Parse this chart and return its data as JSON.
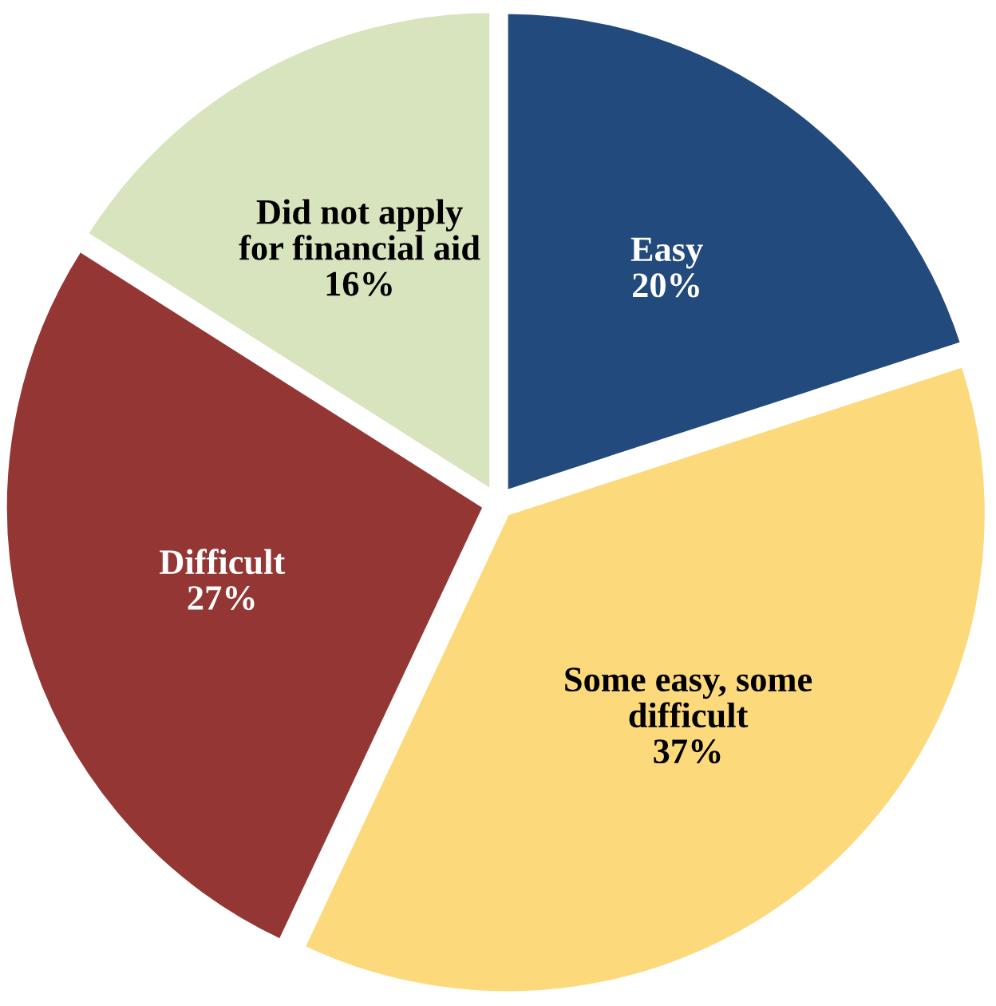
{
  "chart_data": {
    "type": "pie",
    "categories": [
      "Easy",
      "Some easy, some\ndifficult",
      "Difficult",
      "Did not apply\nfor financial aid"
    ],
    "values": [
      20,
      37,
      27,
      16
    ],
    "value_labels": [
      "20%",
      "37%",
      "27%",
      "16%"
    ],
    "colors": [
      "#234a7c",
      "#fcd97a",
      "#943634",
      "#d7e4bd"
    ]
  }
}
